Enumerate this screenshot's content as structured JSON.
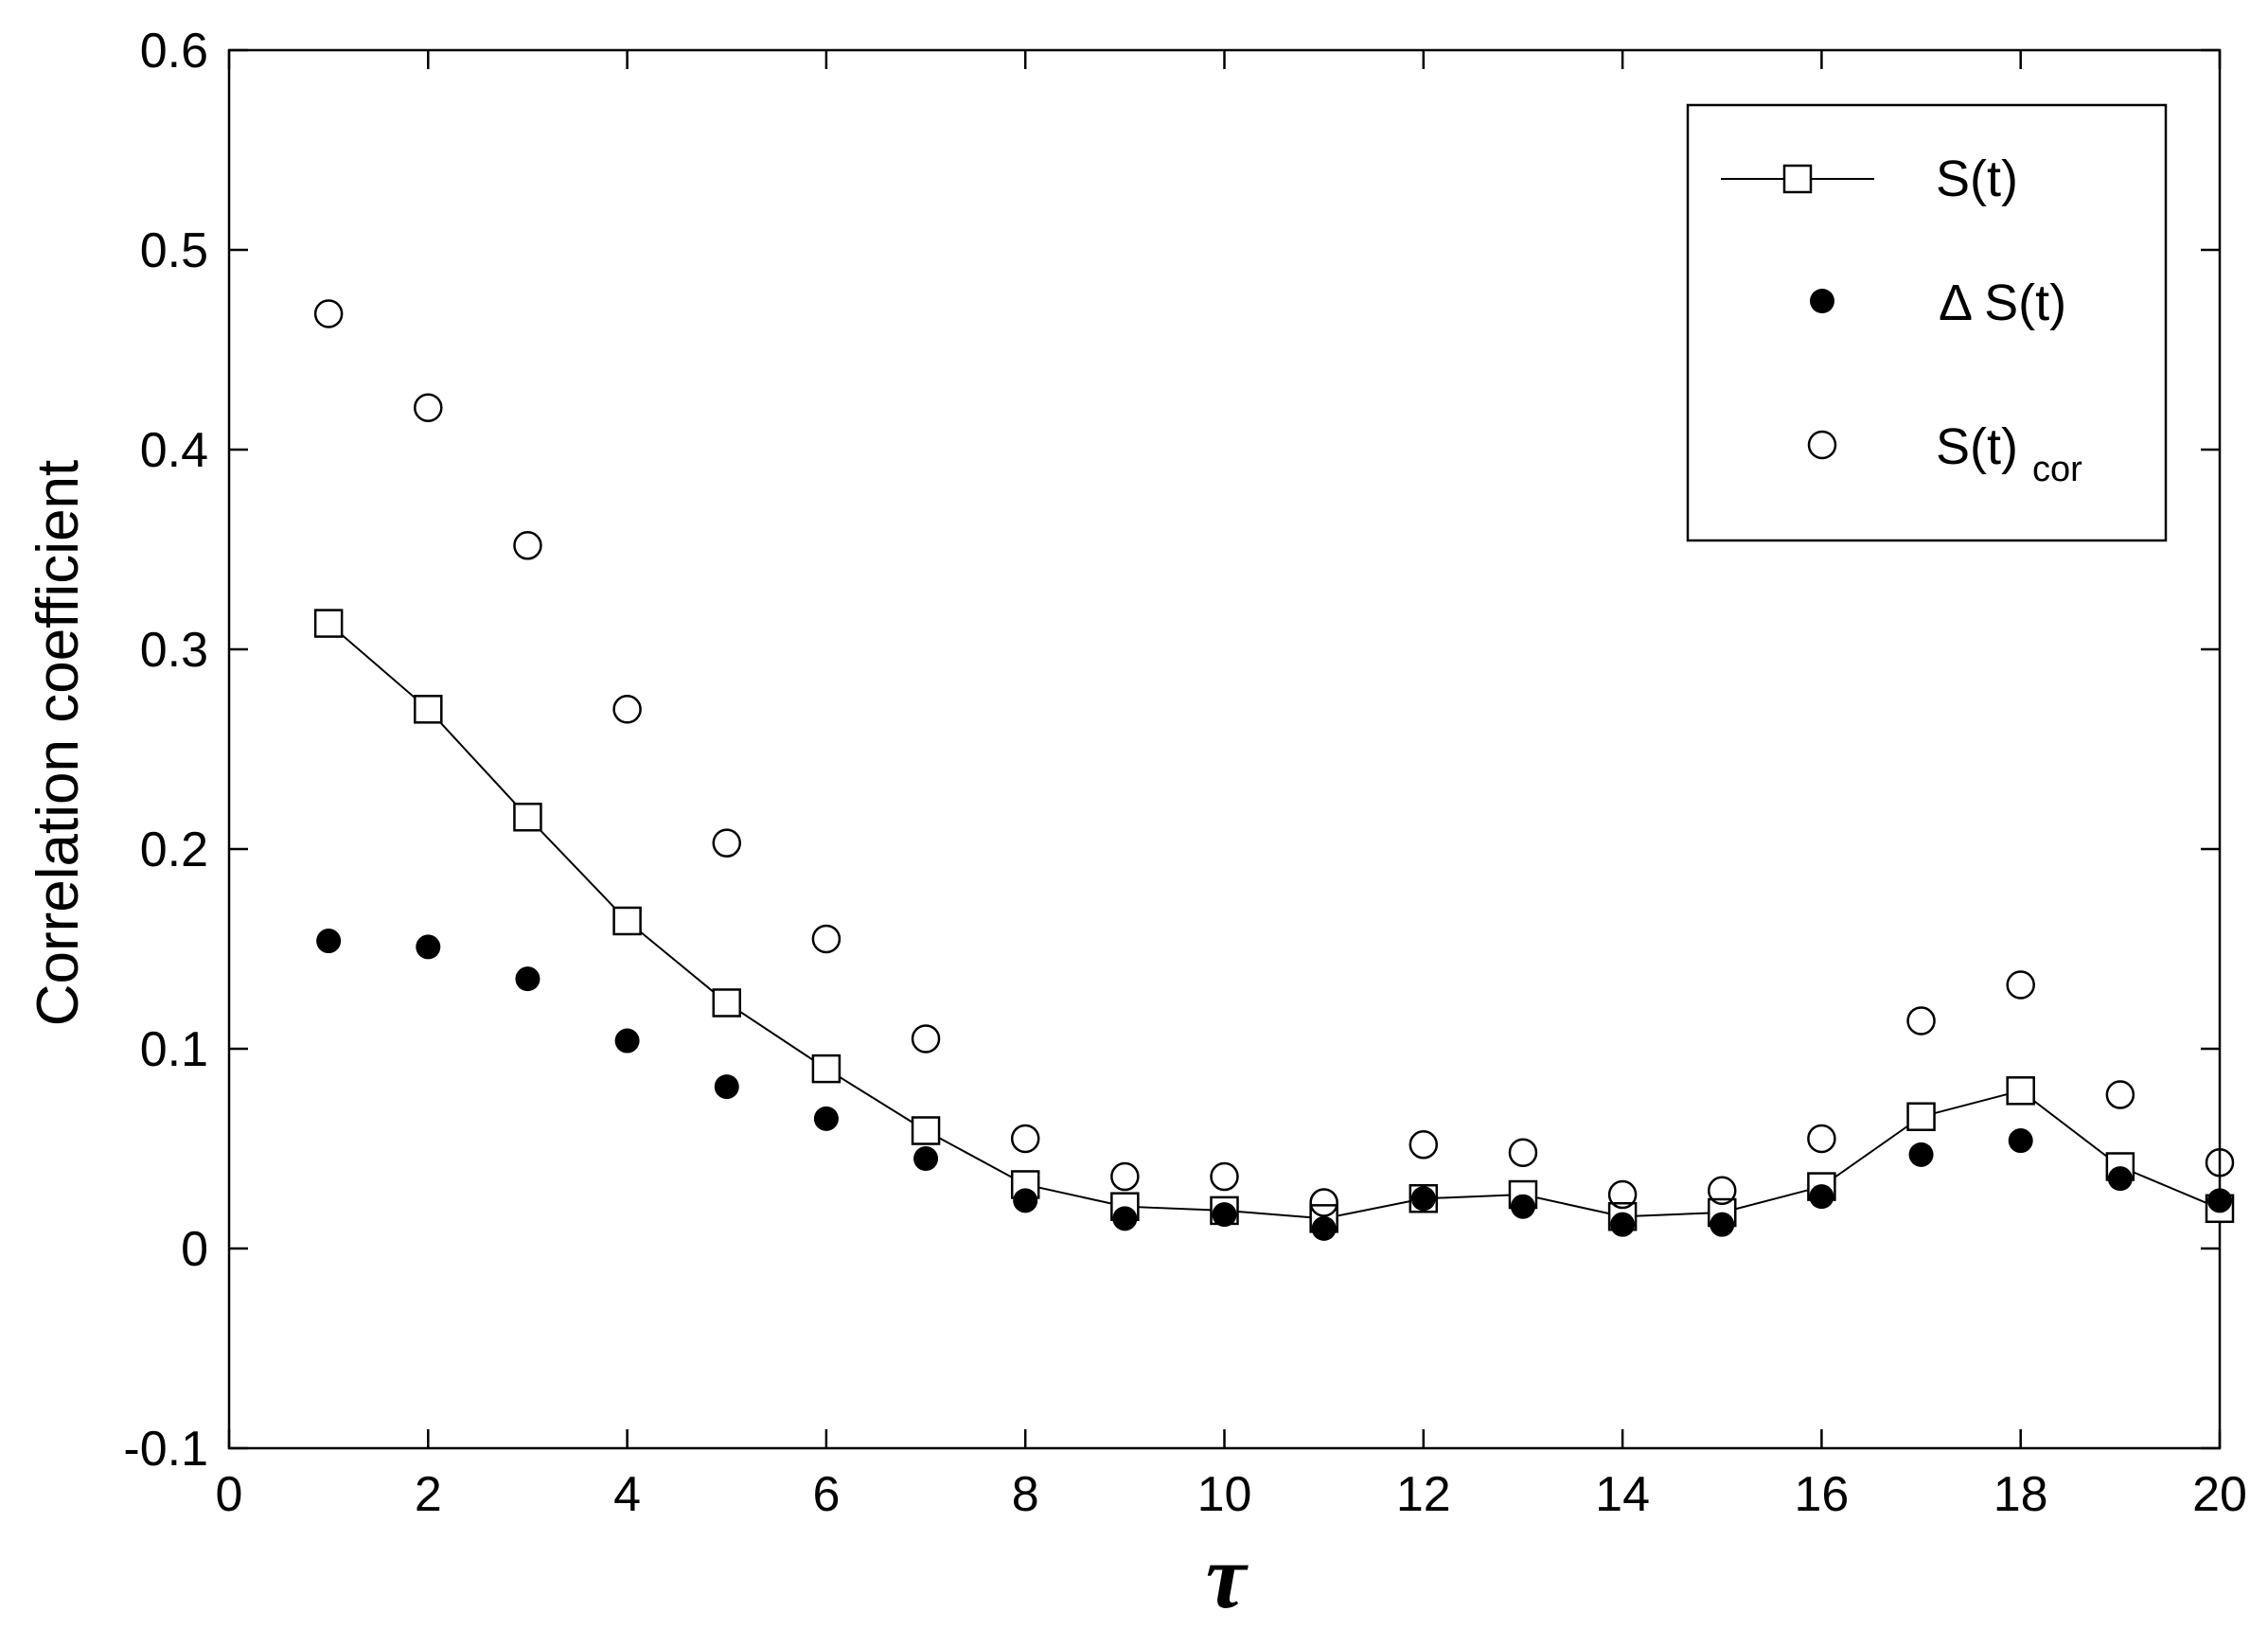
{
  "chart_data": {
    "type": "line",
    "xlabel": "τ",
    "ylabel": "Correlation coefficient",
    "xlim": [
      0,
      20
    ],
    "ylim": [
      -0.1,
      0.6
    ],
    "xticks": [
      "0",
      "2",
      "4",
      "6",
      "8",
      "10",
      "12",
      "14",
      "16",
      "18",
      "20"
    ],
    "yticks": [
      "-0.1",
      "0",
      "0.1",
      "0.2",
      "0.3",
      "0.4",
      "0.5",
      "0.6"
    ],
    "grid": false,
    "legend_position": "top-right",
    "x": [
      1,
      2,
      3,
      4,
      5,
      6,
      7,
      8,
      9,
      10,
      11,
      12,
      13,
      14,
      15,
      16,
      17,
      18,
      19,
      20
    ],
    "series": [
      {
        "name": "S(t)",
        "marker": "open-square",
        "line": true,
        "values": [
          0.313,
          0.27,
          0.216,
          0.164,
          0.123,
          0.09,
          0.059,
          0.032,
          0.021,
          0.019,
          0.015,
          0.025,
          0.027,
          0.016,
          0.018,
          0.031,
          0.066,
          0.079,
          0.041,
          0.02
        ]
      },
      {
        "name_main": "Δ S(t)",
        "marker": "filled-circle",
        "line": false,
        "values": [
          0.154,
          0.151,
          0.135,
          0.104,
          0.081,
          0.065,
          0.045,
          0.024,
          0.015,
          0.017,
          0.01,
          0.025,
          0.021,
          0.012,
          0.012,
          0.026,
          0.047,
          0.054,
          0.035,
          0.024
        ]
      },
      {
        "name_main": "S(t)",
        "name_sub": "cor",
        "marker": "open-circle",
        "line": false,
        "values": [
          0.468,
          0.421,
          0.352,
          0.27,
          0.203,
          0.155,
          0.105,
          0.055,
          0.036,
          0.036,
          0.023,
          0.052,
          0.048,
          0.027,
          0.029,
          0.055,
          0.114,
          0.132,
          0.077,
          0.043
        ]
      }
    ],
    "legend": {
      "s_label": "S(t)",
      "ds_label": "Δ S(t)",
      "scor_main": "S(t)",
      "scor_sub": "cor"
    }
  }
}
